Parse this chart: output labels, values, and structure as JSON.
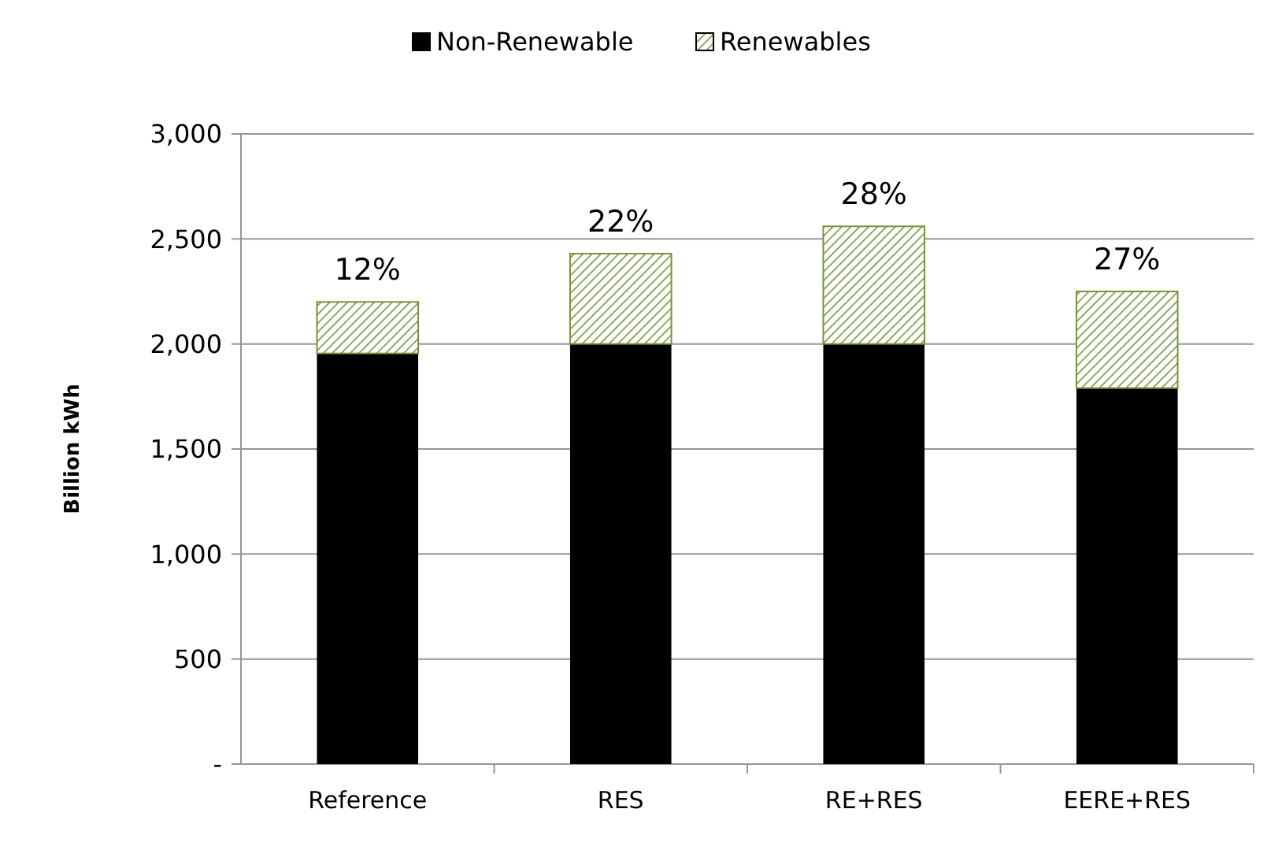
{
  "chart_data": {
    "type": "bar",
    "stacked": true,
    "ylabel": "Billion  kWh",
    "categories": [
      "Reference",
      "RES",
      "RE+RES",
      "EERE+RES"
    ],
    "series": [
      {
        "name": "Non-Renewable",
        "color": "#000000",
        "values": [
          1955,
          2000,
          2000,
          1790
        ]
      },
      {
        "name": "Renewables",
        "color": "#77933c",
        "values": [
          245,
          430,
          560,
          460
        ]
      }
    ],
    "ylim": [
      0,
      3000
    ],
    "yticks": [
      {
        "value": 0,
        "label": "-"
      },
      {
        "value": 500,
        "label": "500"
      },
      {
        "value": 1000,
        "label": "1,000"
      },
      {
        "value": 1500,
        "label": "1,500"
      },
      {
        "value": 2000,
        "label": "2,000"
      },
      {
        "value": 2500,
        "label": "2,500"
      },
      {
        "value": 3000,
        "label": "3,000"
      }
    ],
    "grid": "y",
    "legend": "top",
    "annotations": [
      {
        "text": "12%",
        "x": "Reference",
        "y": 2200
      },
      {
        "text": "22%",
        "x": "RES",
        "y": 2430
      },
      {
        "text": "28%",
        "x": "RE+RES",
        "y": 2560
      },
      {
        "text": "27%",
        "x": "EERE+RES",
        "y": 2250
      }
    ]
  }
}
